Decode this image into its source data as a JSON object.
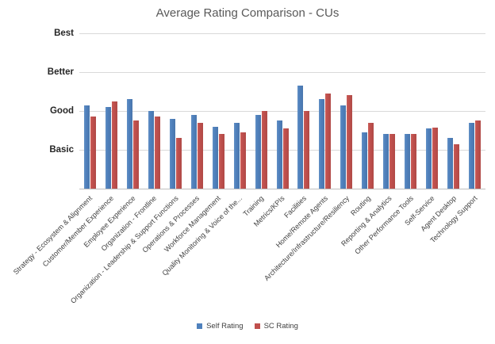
{
  "chart_data": {
    "type": "bar",
    "title": "Average Rating Comparison - CUs",
    "categories": [
      "Strategy - Ecosystem & Alignment",
      "Customer/Member Experience",
      "Employee Experience",
      "Organization - Frontline",
      "Organization - Leadership & Support Functions",
      "Operations & Processes",
      "Workforce Management",
      "Quality Monitoring & Voice of the...",
      "Training",
      "Metrics/KPIs",
      "Facilities",
      "Home/Remote Agents",
      "Architecture/Infrastructure/Resiliency",
      "Routing",
      "Reporting & Analytics",
      "Other Performance Tools",
      "Self-Service",
      "Agent Desktop",
      "Technology Support"
    ],
    "series": [
      {
        "name": "Self Rating",
        "color": "#4F81BD",
        "values": [
          2.15,
          2.1,
          2.3,
          2.0,
          1.8,
          1.9,
          1.6,
          1.7,
          1.9,
          1.75,
          2.65,
          2.3,
          2.15,
          1.45,
          1.4,
          1.4,
          1.55,
          1.3,
          1.7
        ]
      },
      {
        "name": "SC Rating",
        "color": "#C0504D",
        "values": [
          1.85,
          2.25,
          1.75,
          1.85,
          1.3,
          1.7,
          1.4,
          1.45,
          2.0,
          1.55,
          2.0,
          2.45,
          2.4,
          1.7,
          1.4,
          1.4,
          1.57,
          1.15,
          1.75
        ]
      }
    ],
    "y_ticks": [
      {
        "label": "Basic",
        "value": 1
      },
      {
        "label": "Good",
        "value": 2
      },
      {
        "label": "Better",
        "value": 3
      },
      {
        "label": "Best",
        "value": 4
      }
    ],
    "ylim": [
      0,
      4
    ],
    "grid": true,
    "legend_position": "bottom",
    "xlabel": "",
    "ylabel": ""
  },
  "colors": {
    "self_rating": "#4F81BD",
    "sc_rating": "#C0504D",
    "title_text": "#595959",
    "gridline": "#D9D9D9",
    "axis_line": "#BFBFBF",
    "tick_label": "#262626",
    "category_label": "#404040"
  }
}
